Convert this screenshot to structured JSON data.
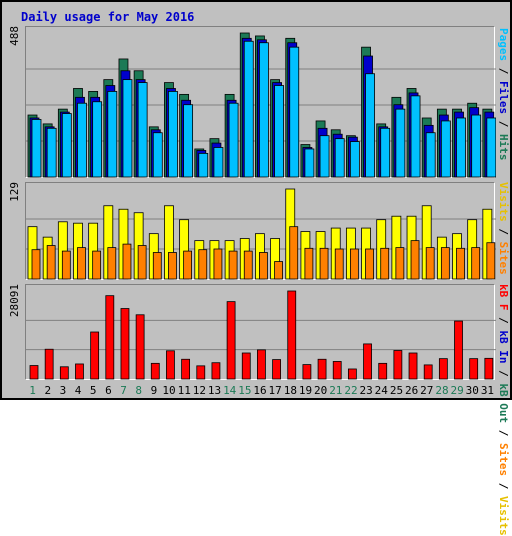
{
  "title": "Daily usage for May 2016",
  "chart_data": [
    {
      "type": "bar",
      "panel": "top",
      "ymax_label": "488",
      "ylim": [
        0,
        488
      ],
      "categories": [
        "1",
        "2",
        "3",
        "4",
        "5",
        "6",
        "7",
        "8",
        "9",
        "10",
        "11",
        "12",
        "13",
        "14",
        "15",
        "16",
        "17",
        "18",
        "19",
        "20",
        "21",
        "22",
        "23",
        "24",
        "25",
        "26",
        "27",
        "28",
        "29",
        "30",
        "31"
      ],
      "series": [
        {
          "name": "Hits",
          "color": "#1c7a56",
          "values": [
            210,
            180,
            230,
            300,
            290,
            330,
            400,
            360,
            170,
            320,
            280,
            95,
            130,
            280,
            488,
            478,
            330,
            470,
            110,
            190,
            160,
            140,
            440,
            180,
            270,
            300,
            200,
            230,
            230,
            250,
            230
          ]
        },
        {
          "name": "Files",
          "color": "#0000cc",
          "values": [
            200,
            170,
            220,
            270,
            270,
            310,
            360,
            330,
            160,
            300,
            260,
            90,
            115,
            260,
            470,
            465,
            320,
            455,
            100,
            165,
            145,
            135,
            410,
            170,
            245,
            285,
            175,
            210,
            220,
            235,
            220
          ]
        },
        {
          "name": "Pages",
          "color": "#00c0ff",
          "values": [
            195,
            165,
            215,
            250,
            255,
            290,
            330,
            320,
            150,
            290,
            245,
            80,
            100,
            250,
            460,
            455,
            310,
            440,
            95,
            140,
            130,
            120,
            350,
            165,
            230,
            275,
            150,
            190,
            200,
            210,
            200
          ]
        }
      ],
      "legend": [
        "Pages",
        "/",
        "Files",
        "/",
        "Hits"
      ]
    },
    {
      "type": "bar",
      "panel": "middle",
      "ymax_label": "129",
      "ylim": [
        0,
        129
      ],
      "categories": [
        "1",
        "2",
        "3",
        "4",
        "5",
        "6",
        "7",
        "8",
        "9",
        "10",
        "11",
        "12",
        "13",
        "14",
        "15",
        "16",
        "17",
        "18",
        "19",
        "20",
        "21",
        "22",
        "23",
        "24",
        "25",
        "26",
        "27",
        "28",
        "29",
        "30",
        "31"
      ],
      "series": [
        {
          "name": "Visits",
          "color": "#ffff00",
          "values": [
            75,
            60,
            82,
            80,
            80,
            105,
            100,
            95,
            65,
            105,
            85,
            55,
            55,
            55,
            58,
            65,
            58,
            129,
            68,
            68,
            73,
            73,
            73,
            85,
            90,
            90,
            105,
            60,
            65,
            85,
            100
          ]
        },
        {
          "name": "Sites",
          "color": "#ff8000",
          "values": [
            42,
            48,
            40,
            45,
            40,
            45,
            50,
            48,
            38,
            38,
            40,
            42,
            43,
            40,
            40,
            38,
            25,
            75,
            44,
            44,
            43,
            43,
            43,
            44,
            45,
            55,
            45,
            45,
            44,
            45,
            52
          ]
        }
      ],
      "legend": [
        "Visits",
        "/",
        "Sites"
      ]
    },
    {
      "type": "bar",
      "panel": "bottom",
      "ymax_label": "28091",
      "ylim": [
        0,
        28091
      ],
      "categories": [
        "1",
        "2",
        "3",
        "4",
        "5",
        "6",
        "7",
        "8",
        "9",
        "10",
        "11",
        "12",
        "13",
        "14",
        "15",
        "16",
        "17",
        "18",
        "19",
        "20",
        "21",
        "22",
        "23",
        "24",
        "25",
        "26",
        "27",
        "28",
        "29",
        "30",
        "31"
      ],
      "series": [
        {
          "name": "kB F",
          "color": "#ff0000",
          "values": [
            4300,
            9500,
            3900,
            4800,
            15000,
            26600,
            22500,
            20500,
            5000,
            9000,
            6300,
            4200,
            5200,
            24700,
            8300,
            9300,
            6200,
            28091,
            4600,
            6300,
            5600,
            3200,
            11200,
            5000,
            9100,
            8300,
            4500,
            6500,
            18500,
            6500,
            6600
          ]
        }
      ],
      "legend": [
        "kB F",
        "/",
        "kB In",
        "/",
        "kB Out",
        "/",
        "Sites",
        "/",
        "Visits"
      ]
    }
  ],
  "colors": {
    "hits": "#1c7a56",
    "files": "#0000cc",
    "pages": "#00c0ff",
    "visits": "#ffff00",
    "sites": "#ff8000",
    "kbf": "#ff0000",
    "kbin": "#0000cc",
    "kbout": "#1c7a56",
    "weekend_label": "#1c7a56"
  },
  "weekend_days": [
    "1",
    "7",
    "8",
    "14",
    "15",
    "21",
    "22",
    "28",
    "29"
  ]
}
